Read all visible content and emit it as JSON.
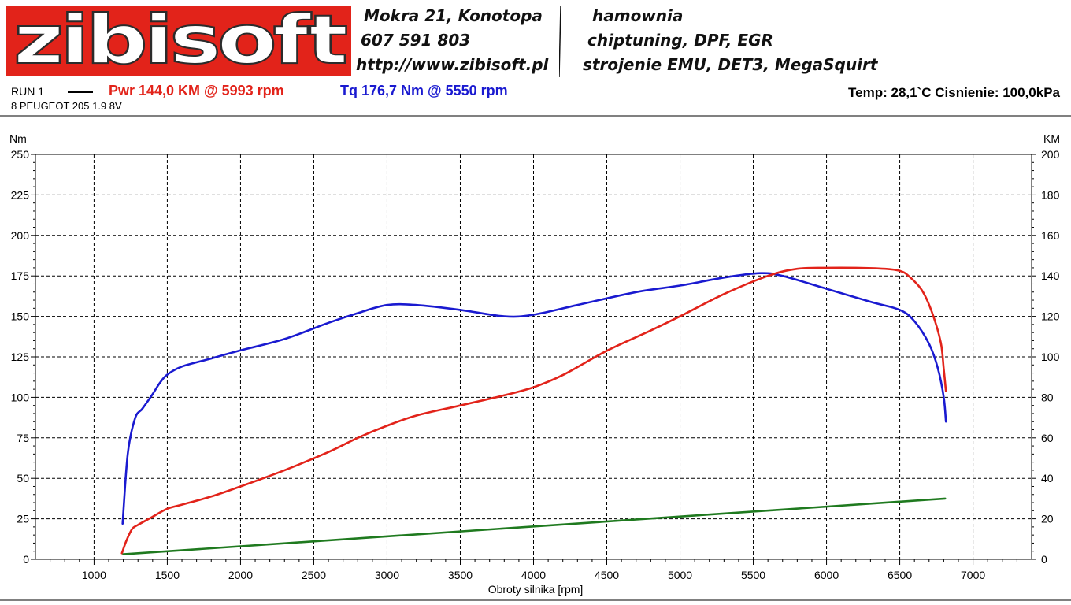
{
  "header": {
    "logo": "zibisoft",
    "address": "Mokra 21, Konotopa",
    "phone": "607 591 803",
    "url": "http://www.zibisoft.pl",
    "service1": "hamownia",
    "service2": "chiptuning, DPF, EGR",
    "service3": "strojenie EMU, DET3, MegaSquirt"
  },
  "run": {
    "label": "RUN 1",
    "vehicle": "8 PEUGEOT 205 1.9 8V",
    "power_summary": "Pwr  144,0 KM @ 5993 rpm",
    "torque_summary": "Tq 176,7 Nm @ 5550 rpm",
    "env_summary": "Temp: 28,1`C   Cisnienie: 100,0kPa"
  },
  "colors": {
    "logo_bg": "#e2231a",
    "power": "#e2231a",
    "torque": "#1a1ad0",
    "speed": "#1f7a1f"
  },
  "chart_data": {
    "type": "line",
    "xlabel": "Obroty silnika [rpm]",
    "ylabel_left": "Nm",
    "ylabel_right": "KM",
    "xlim": [
      600,
      7400
    ],
    "ylim_left": [
      0,
      250
    ],
    "ylim_right": [
      0,
      200
    ],
    "x_ticks": [
      1000,
      1500,
      2000,
      2500,
      3000,
      3500,
      4000,
      4500,
      5000,
      5500,
      6000,
      6500,
      7000
    ],
    "y_ticks_left": [
      0,
      25,
      50,
      75,
      100,
      125,
      150,
      175,
      200,
      225,
      250
    ],
    "y_ticks_right": [
      0,
      20,
      40,
      60,
      80,
      100,
      120,
      140,
      160,
      180,
      200
    ],
    "grid": true,
    "series": [
      {
        "name": "Tq",
        "axis": "left",
        "color": "#1a1ad0",
        "x": [
          1195,
          1230,
          1280,
          1330,
          1400,
          1450,
          1500,
          1600,
          1800,
          2000,
          2300,
          2600,
          2800,
          3000,
          3200,
          3500,
          3800,
          4000,
          4300,
          4700,
          5000,
          5300,
          5550,
          5700,
          6000,
          6300,
          6500,
          6600,
          6700,
          6760,
          6800,
          6815
        ],
        "y": [
          22,
          65,
          87,
          93,
          102,
          109,
          114,
          119,
          124,
          129,
          136,
          146,
          152,
          157,
          157,
          154,
          150,
          151,
          157,
          165,
          169,
          174,
          176.7,
          175,
          167,
          159,
          154,
          147,
          133,
          118,
          100,
          85
        ]
      },
      {
        "name": "Pwr",
        "axis": "right",
        "color": "#e2231a",
        "x": [
          1190,
          1220,
          1260,
          1300,
          1400,
          1500,
          1600,
          1800,
          2000,
          2300,
          2600,
          2800,
          3000,
          3200,
          3500,
          3800,
          4000,
          4200,
          4500,
          4800,
          5000,
          5300,
          5600,
          5800,
          5993,
          6200,
          6400,
          6500,
          6560,
          6650,
          6720,
          6780,
          6800,
          6815
        ],
        "y": [
          3,
          9,
          15,
          17,
          21,
          25,
          27,
          31,
          36,
          44,
          53,
          60,
          66,
          71,
          76,
          81,
          85,
          91,
          103,
          113,
          120,
          131,
          140,
          143.5,
          144,
          144,
          143.5,
          142.5,
          140,
          133,
          122,
          107,
          94,
          83
        ]
      },
      {
        "name": "",
        "axis": "right",
        "color": "#1f7a1f",
        "x": [
          1200,
          6810
        ],
        "y": [
          2.5,
          30
        ]
      }
    ]
  }
}
